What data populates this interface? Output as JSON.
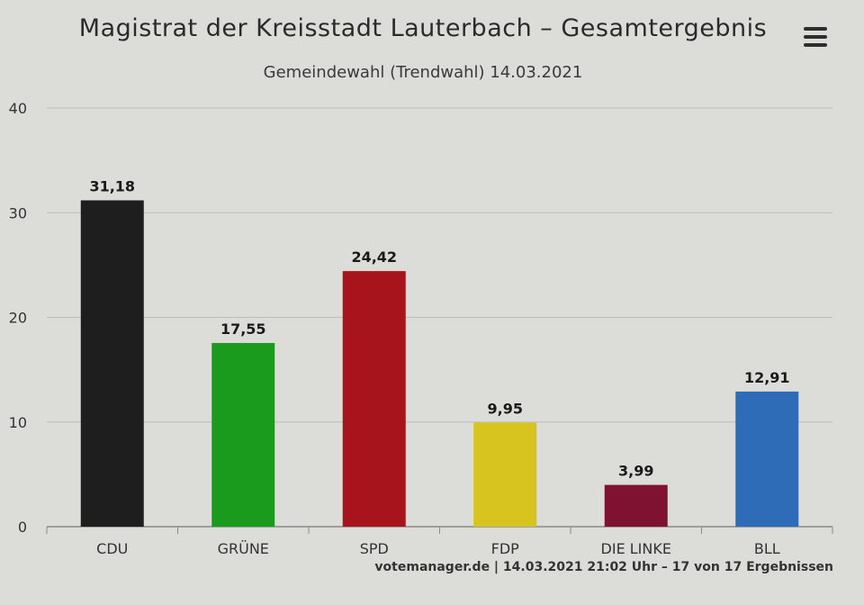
{
  "chart_data": {
    "type": "bar",
    "title": "Magistrat der Kreisstadt Lauterbach – Gesamtergebnis",
    "subtitle": "Gemeindewahl (Trendwahl) 14.03.2021",
    "categories": [
      "CDU",
      "GRÜNE",
      "SPD",
      "FDP",
      "DIE LINKE",
      "BLL"
    ],
    "values": [
      31.18,
      17.55,
      24.42,
      9.95,
      3.99,
      12.91
    ],
    "data_labels": [
      "31,18",
      "17,55",
      "24,42",
      "9,95",
      "3,99",
      "12,91"
    ],
    "colors": [
      "#1e1e1e",
      "#1b9b1e",
      "#a8141b",
      "#d8c41e",
      "#7e1230",
      "#2f6cb8"
    ],
    "y_ticks": [
      0,
      10,
      20,
      30,
      40
    ],
    "ylim": [
      0,
      40
    ],
    "grid": true,
    "legend": "none"
  },
  "header": {
    "menu_icon": "hamburger-menu-icon"
  },
  "credit": "votemanager.de | 14.03.2021 21:02 Uhr – 17 von 17 Ergebnissen"
}
